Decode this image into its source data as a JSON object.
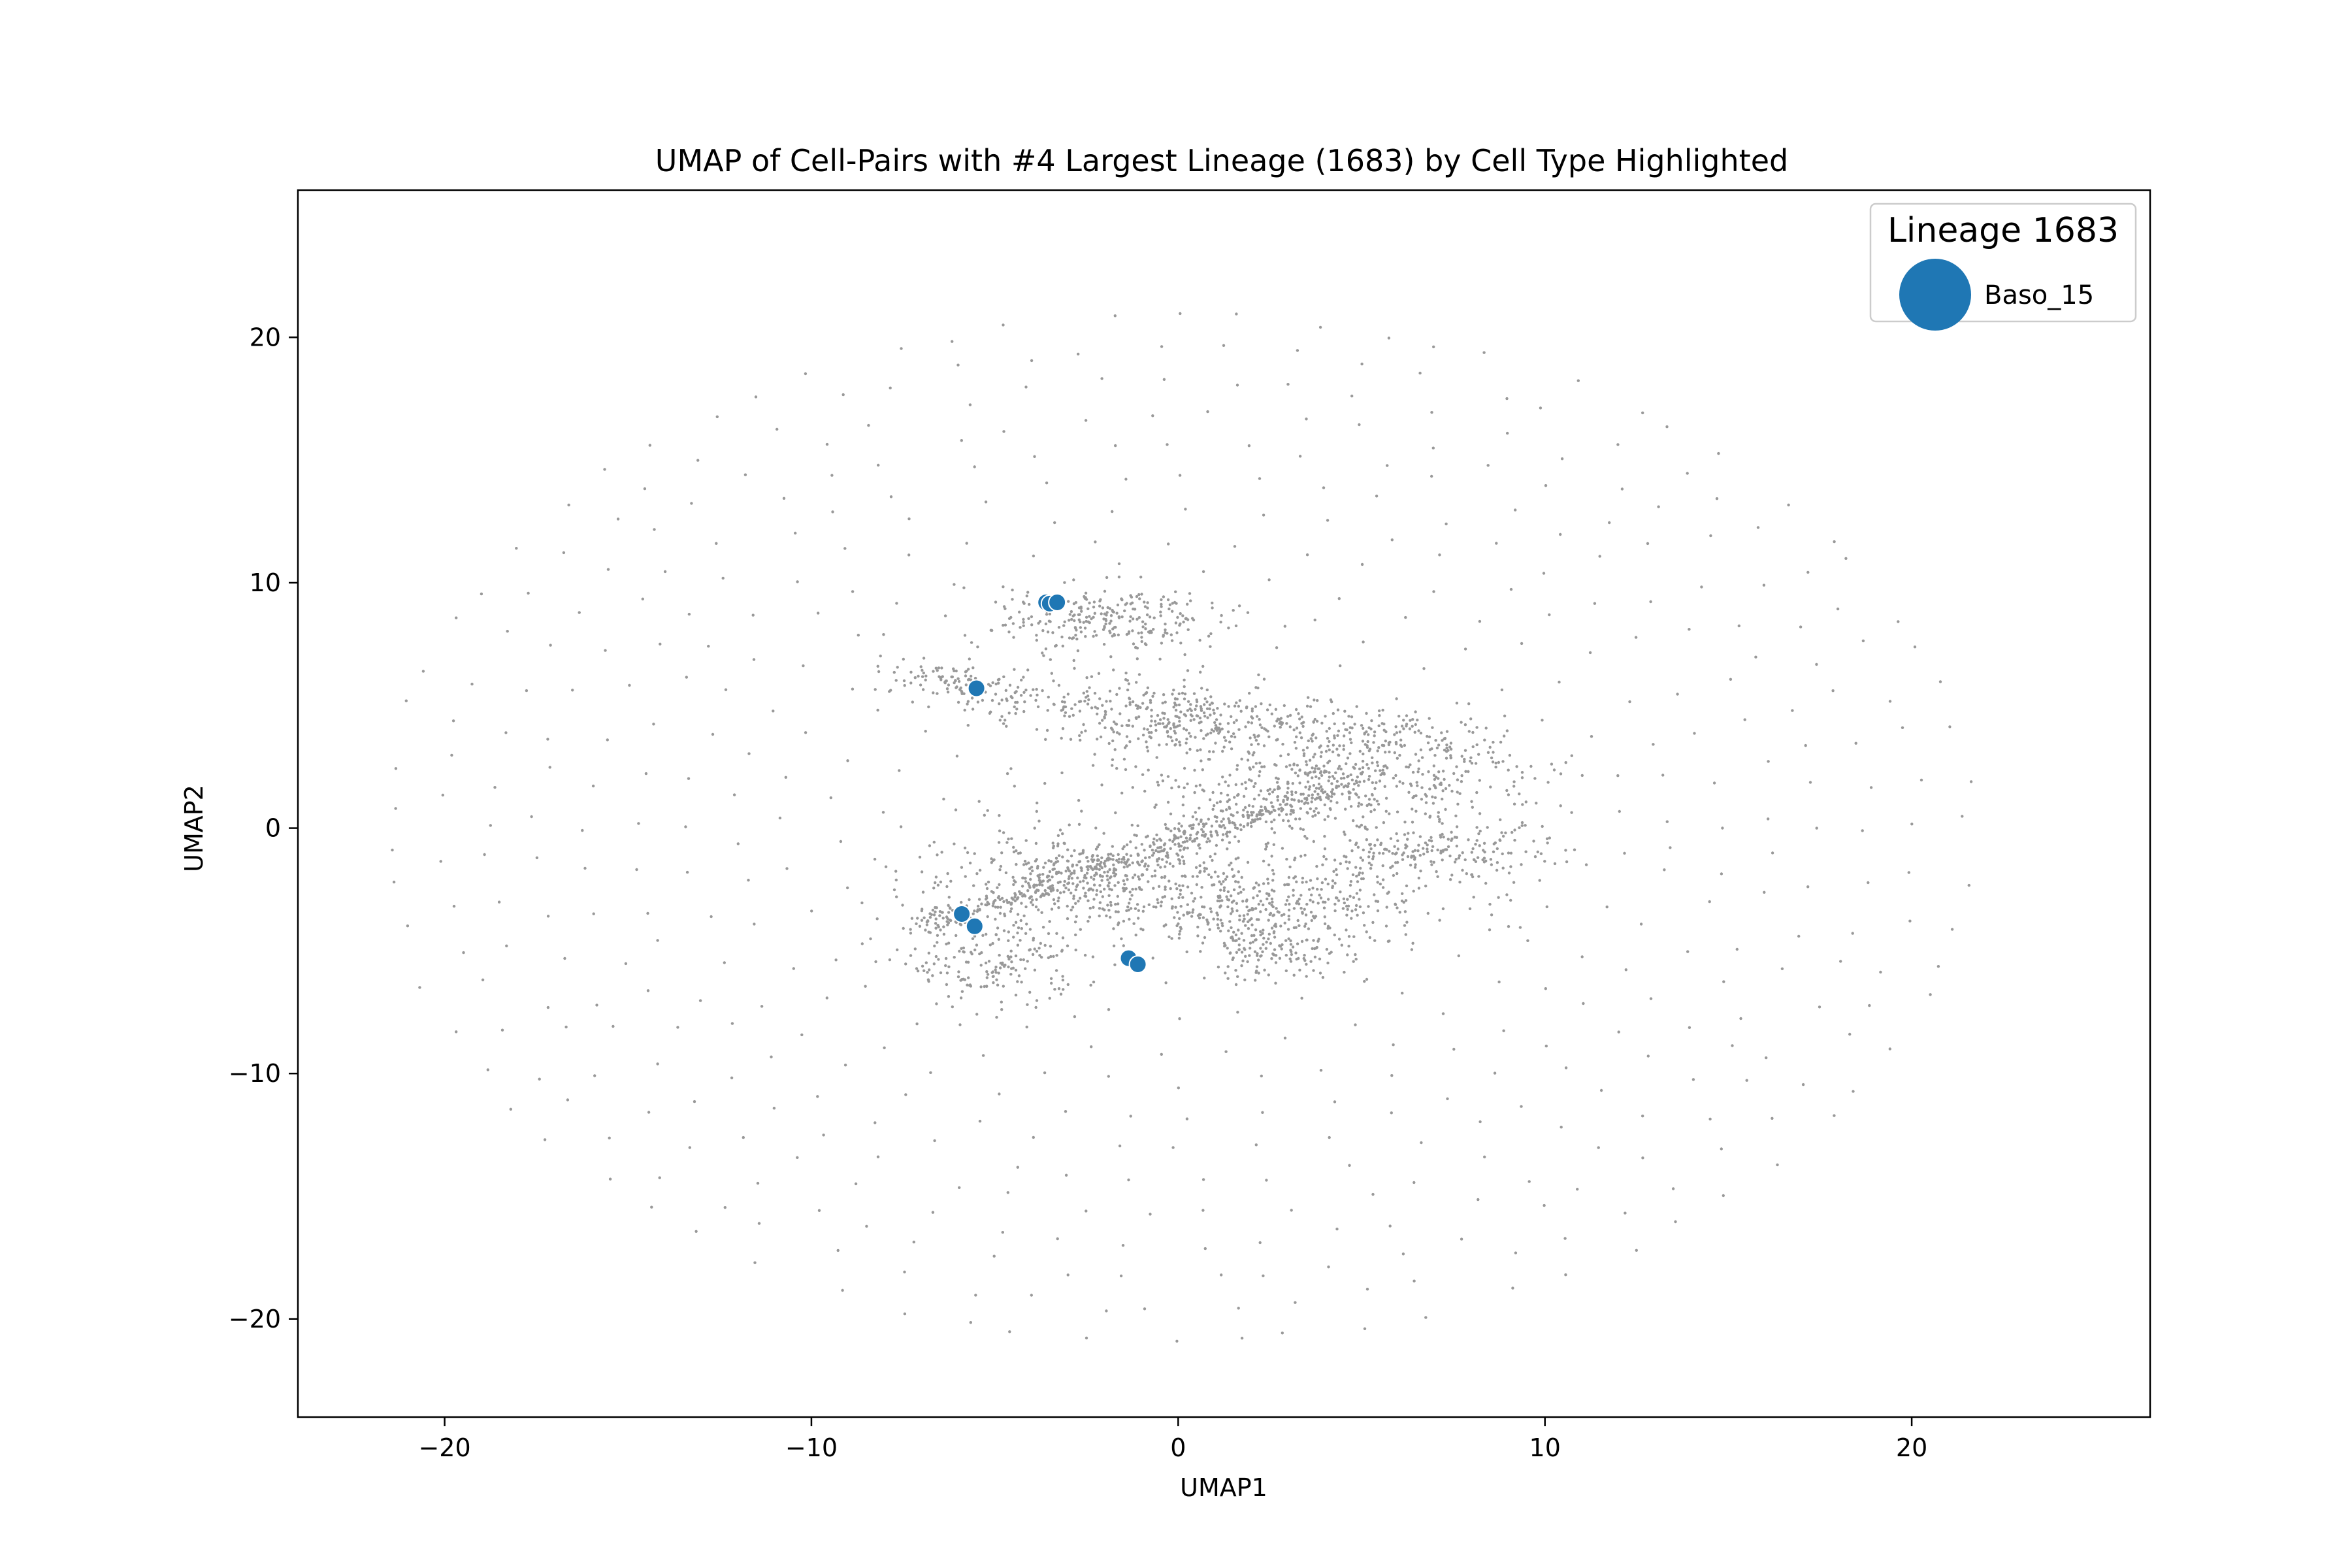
{
  "chart_data": {
    "type": "scatter",
    "title": "UMAP of Cell-Pairs with #4 Largest Lineage (1683) by Cell Type Highlighted",
    "xlabel": "UMAP1",
    "ylabel": "UMAP2",
    "xlim": [
      -24,
      26.5
    ],
    "ylim": [
      -24,
      26
    ],
    "xticks": [
      -20,
      -10,
      0,
      10,
      20
    ],
    "yticks": [
      -20,
      -10,
      0,
      10,
      20
    ],
    "xtick_labels": [
      "−20",
      "−10",
      "0",
      "10",
      "20"
    ],
    "ytick_labels": [
      "−20",
      "−10",
      "0",
      "10",
      "20"
    ],
    "grid": false,
    "background": {
      "color": "#999999",
      "description_points_generated": "ring-layout",
      "ring_radius_max": 22.5,
      "core_clusters": [
        {
          "cx": -2.0,
          "cy": 8.5,
          "rx": 2.5,
          "ry": 1.2,
          "n": 260
        },
        {
          "cx": 4.0,
          "cy": 2.0,
          "rx": 5.0,
          "ry": 2.0,
          "n": 520
        },
        {
          "cx": 2.0,
          "cy": -3.0,
          "rx": 4.5,
          "ry": 1.5,
          "n": 420
        },
        {
          "cx": -2.5,
          "cy": -2.0,
          "rx": 4.0,
          "ry": 1.6,
          "n": 380
        },
        {
          "cx": -5.0,
          "cy": -5.5,
          "rx": 2.0,
          "ry": 1.5,
          "n": 180
        },
        {
          "cx": 7.0,
          "cy": -1.0,
          "rx": 3.0,
          "ry": 1.0,
          "n": 200
        },
        {
          "cx": 2.5,
          "cy": -5.0,
          "rx": 1.8,
          "ry": 1.0,
          "n": 150
        },
        {
          "cx": 0.0,
          "cy": 4.5,
          "rx": 2.5,
          "ry": 1.2,
          "n": 160
        },
        {
          "cx": -6.5,
          "cy": 6.0,
          "rx": 1.5,
          "ry": 0.6,
          "n": 70
        }
      ]
    },
    "series": [
      {
        "name": "Baso_15",
        "color": "#1f77b4",
        "points": [
          {
            "x": -3.6,
            "y": 9.2
          },
          {
            "x": -3.5,
            "y": 9.15
          },
          {
            "x": -3.3,
            "y": 9.2
          },
          {
            "x": -5.5,
            "y": 5.7
          },
          {
            "x": -5.9,
            "y": -3.5
          },
          {
            "x": -5.55,
            "y": -4.0
          },
          {
            "x": -1.35,
            "y": -5.3
          },
          {
            "x": -1.1,
            "y": -5.55
          }
        ]
      }
    ],
    "legend": {
      "title": "Lineage 1683",
      "placement": "upper right",
      "entries": [
        {
          "label": "Baso_15",
          "color": "#1f77b4"
        }
      ]
    }
  }
}
